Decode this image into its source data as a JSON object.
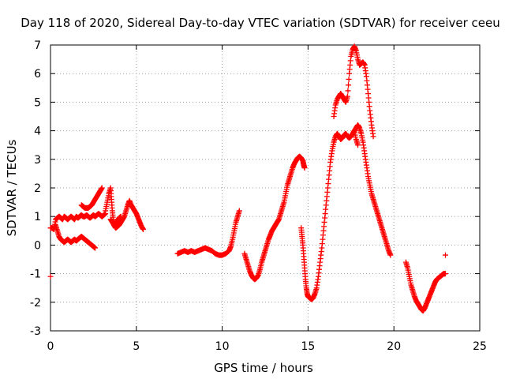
{
  "chart_data": {
    "type": "scatter",
    "title": "Day 118 of 2020, Sidereal Day-to-day VTEC variation (SDTVAR) for receiver ceeu",
    "xlabel": "GPS time / hours",
    "ylabel": "SDTVAR / TECUs",
    "xlim": [
      0,
      25
    ],
    "ylim": [
      -3,
      7
    ],
    "x_ticks": [
      "0",
      "5",
      "10",
      "15",
      "20",
      "25"
    ],
    "y_ticks": [
      "-3",
      "-2",
      "-1",
      "0",
      "1",
      "2",
      "3",
      "4",
      "5",
      "6",
      "7"
    ],
    "grid": true,
    "marker": "+",
    "marker_color": "#ff0000",
    "series": [
      {
        "segments": [
          [
            [
              0.0,
              -1.1
            ]
          ],
          [
            [
              0.0,
              0.6
            ],
            [
              0.1,
              0.6
            ],
            [
              0.2,
              0.55
            ],
            [
              0.3,
              0.9
            ],
            [
              0.4,
              0.95
            ],
            [
              0.5,
              1.0
            ],
            [
              0.6,
              0.95
            ],
            [
              0.7,
              0.9
            ],
            [
              0.8,
              1.0
            ],
            [
              0.9,
              0.95
            ],
            [
              1.0,
              0.9
            ],
            [
              1.1,
              0.95
            ],
            [
              1.2,
              1.0
            ],
            [
              1.3,
              0.95
            ],
            [
              1.4,
              0.9
            ],
            [
              1.5,
              1.0
            ],
            [
              1.6,
              0.95
            ],
            [
              1.7,
              1.0
            ],
            [
              1.8,
              1.05
            ],
            [
              1.9,
              1.0
            ],
            [
              2.0,
              1.0
            ],
            [
              2.1,
              1.05
            ],
            [
              2.2,
              1.0
            ],
            [
              2.3,
              0.95
            ],
            [
              2.4,
              1.0
            ],
            [
              2.5,
              1.05
            ],
            [
              2.6,
              1.0
            ],
            [
              2.7,
              1.05
            ],
            [
              2.8,
              1.1
            ],
            [
              2.9,
              1.05
            ],
            [
              3.0,
              1.0
            ],
            [
              3.1,
              1.05
            ],
            [
              3.2,
              1.1
            ]
          ],
          [
            [
              0.3,
              0.7
            ],
            [
              0.4,
              0.5
            ],
            [
              0.5,
              0.3
            ],
            [
              0.6,
              0.2
            ],
            [
              0.7,
              0.15
            ],
            [
              0.8,
              0.1
            ],
            [
              0.9,
              0.15
            ],
            [
              1.0,
              0.2
            ],
            [
              1.1,
              0.15
            ],
            [
              1.2,
              0.1
            ],
            [
              1.3,
              0.15
            ],
            [
              1.4,
              0.2
            ],
            [
              1.5,
              0.15
            ],
            [
              1.6,
              0.2
            ],
            [
              1.7,
              0.25
            ],
            [
              1.8,
              0.3
            ],
            [
              1.9,
              0.25
            ],
            [
              2.0,
              0.2
            ],
            [
              2.1,
              0.15
            ],
            [
              2.2,
              0.1
            ],
            [
              2.3,
              0.05
            ],
            [
              2.4,
              0.0
            ],
            [
              2.5,
              -0.05
            ],
            [
              2.6,
              -0.1
            ]
          ],
          [
            [
              1.8,
              1.4
            ],
            [
              1.9,
              1.35
            ],
            [
              2.0,
              1.3
            ],
            [
              2.1,
              1.3
            ],
            [
              2.2,
              1.3
            ],
            [
              2.3,
              1.35
            ],
            [
              2.4,
              1.4
            ],
            [
              2.5,
              1.5
            ],
            [
              2.6,
              1.6
            ],
            [
              2.7,
              1.7
            ],
            [
              2.8,
              1.8
            ],
            [
              2.9,
              1.9
            ],
            [
              3.0,
              2.0
            ]
          ],
          [
            [
              3.2,
              1.2
            ],
            [
              3.3,
              1.5
            ],
            [
              3.4,
              1.8
            ],
            [
              3.5,
              2.0
            ],
            [
              3.55,
              1.6
            ],
            [
              3.6,
              1.2
            ],
            [
              3.65,
              0.9
            ],
            [
              3.7,
              0.7
            ],
            [
              3.75,
              0.65
            ],
            [
              3.8,
              0.6
            ],
            [
              3.9,
              0.65
            ],
            [
              4.0,
              0.7
            ],
            [
              4.1,
              0.8
            ],
            [
              4.2,
              0.9
            ],
            [
              4.3,
              1.0
            ],
            [
              4.4,
              1.2
            ],
            [
              4.5,
              1.4
            ],
            [
              4.6,
              1.55
            ],
            [
              4.7,
              1.4
            ],
            [
              4.8,
              1.3
            ],
            [
              4.9,
              1.2
            ],
            [
              5.0,
              1.1
            ],
            [
              5.1,
              0.95
            ],
            [
              5.2,
              0.8
            ],
            [
              5.3,
              0.65
            ],
            [
              5.4,
              0.55
            ]
          ],
          [
            [
              3.5,
              0.9
            ],
            [
              3.6,
              0.8
            ],
            [
              3.7,
              0.7
            ],
            [
              3.8,
              0.75
            ],
            [
              3.9,
              0.85
            ],
            [
              4.0,
              0.95
            ],
            [
              4.1,
              1.0
            ]
          ],
          [
            [
              7.4,
              -0.3
            ],
            [
              7.6,
              -0.25
            ],
            [
              7.8,
              -0.2
            ],
            [
              8.0,
              -0.25
            ],
            [
              8.2,
              -0.2
            ],
            [
              8.4,
              -0.25
            ],
            [
              8.6,
              -0.2
            ],
            [
              8.8,
              -0.15
            ],
            [
              9.0,
              -0.1
            ],
            [
              9.2,
              -0.15
            ],
            [
              9.4,
              -0.2
            ],
            [
              9.6,
              -0.3
            ],
            [
              9.8,
              -0.35
            ],
            [
              10.0,
              -0.35
            ],
            [
              10.2,
              -0.3
            ],
            [
              10.4,
              -0.2
            ],
            [
              10.5,
              -0.05
            ],
            [
              10.6,
              0.2
            ],
            [
              10.7,
              0.5
            ],
            [
              10.8,
              0.8
            ],
            [
              10.9,
              1.0
            ],
            [
              11.0,
              1.2
            ]
          ],
          [
            [
              11.3,
              -0.3
            ],
            [
              11.4,
              -0.5
            ],
            [
              11.5,
              -0.7
            ],
            [
              11.6,
              -0.9
            ],
            [
              11.7,
              -1.05
            ],
            [
              11.8,
              -1.15
            ],
            [
              11.9,
              -1.2
            ],
            [
              12.0,
              -1.15
            ],
            [
              12.1,
              -1.05
            ],
            [
              12.2,
              -0.85
            ],
            [
              12.3,
              -0.6
            ],
            [
              12.4,
              -0.4
            ],
            [
              12.5,
              -0.2
            ],
            [
              12.6,
              0.0
            ],
            [
              12.7,
              0.2
            ],
            [
              12.8,
              0.35
            ],
            [
              12.9,
              0.5
            ],
            [
              13.0,
              0.6
            ],
            [
              13.1,
              0.7
            ],
            [
              13.2,
              0.8
            ],
            [
              13.3,
              0.9
            ],
            [
              13.4,
              1.1
            ],
            [
              13.5,
              1.3
            ],
            [
              13.6,
              1.5
            ],
            [
              13.7,
              1.8
            ],
            [
              13.8,
              2.1
            ],
            [
              13.9,
              2.3
            ],
            [
              14.0,
              2.5
            ],
            [
              14.1,
              2.7
            ],
            [
              14.2,
              2.85
            ],
            [
              14.3,
              2.95
            ],
            [
              14.4,
              3.05
            ],
            [
              14.5,
              3.1
            ],
            [
              14.6,
              3.05
            ],
            [
              14.7,
              2.95
            ],
            [
              14.75,
              2.8
            ],
            [
              14.8,
              2.7
            ]
          ],
          [
            [
              14.6,
              0.6
            ],
            [
              14.65,
              0.3
            ],
            [
              14.7,
              0.0
            ],
            [
              14.75,
              -0.4
            ],
            [
              14.8,
              -0.8
            ],
            [
              14.85,
              -1.2
            ],
            [
              14.9,
              -1.5
            ],
            [
              14.95,
              -1.7
            ],
            [
              15.0,
              -1.8
            ],
            [
              15.1,
              -1.85
            ],
            [
              15.2,
              -1.9
            ],
            [
              15.3,
              -1.85
            ],
            [
              15.4,
              -1.7
            ],
            [
              15.5,
              -1.5
            ],
            [
              15.6,
              -1.1
            ],
            [
              15.7,
              -0.6
            ],
            [
              15.8,
              -0.1
            ],
            [
              15.9,
              0.5
            ],
            [
              16.0,
              1.1
            ],
            [
              16.1,
              1.7
            ],
            [
              16.2,
              2.3
            ],
            [
              16.3,
              2.9
            ],
            [
              16.4,
              3.3
            ],
            [
              16.5,
              3.6
            ],
            [
              16.6,
              3.8
            ],
            [
              16.7,
              3.9
            ],
            [
              16.8,
              3.8
            ],
            [
              16.9,
              3.7
            ],
            [
              17.0,
              3.75
            ],
            [
              17.1,
              3.85
            ],
            [
              17.2,
              3.9
            ],
            [
              17.3,
              3.8
            ],
            [
              17.4,
              3.75
            ],
            [
              17.5,
              3.8
            ],
            [
              17.6,
              3.9
            ],
            [
              17.7,
              4.0
            ],
            [
              17.8,
              4.1
            ],
            [
              17.9,
              4.2
            ],
            [
              18.0,
              4.1
            ],
            [
              18.1,
              3.9
            ],
            [
              18.2,
              3.6
            ],
            [
              18.3,
              3.2
            ],
            [
              18.4,
              2.8
            ],
            [
              18.5,
              2.4
            ],
            [
              18.6,
              2.1
            ],
            [
              18.7,
              1.8
            ],
            [
              18.8,
              1.6
            ],
            [
              18.9,
              1.4
            ],
            [
              19.0,
              1.2
            ],
            [
              19.1,
              1.0
            ],
            [
              19.2,
              0.8
            ],
            [
              19.3,
              0.6
            ],
            [
              19.4,
              0.4
            ],
            [
              19.5,
              0.2
            ],
            [
              19.6,
              0.0
            ],
            [
              19.7,
              -0.2
            ],
            [
              19.8,
              -0.35
            ]
          ],
          [
            [
              16.5,
              4.5
            ],
            [
              16.6,
              4.9
            ],
            [
              16.7,
              5.1
            ],
            [
              16.8,
              5.2
            ],
            [
              16.9,
              5.3
            ],
            [
              17.0,
              5.2
            ],
            [
              17.1,
              5.1
            ],
            [
              17.2,
              5.0
            ],
            [
              17.3,
              5.2
            ],
            [
              17.4,
              6.0
            ],
            [
              17.5,
              6.6
            ],
            [
              17.6,
              6.85
            ],
            [
              17.7,
              6.95
            ],
            [
              17.8,
              6.8
            ],
            [
              17.9,
              6.5
            ],
            [
              18.0,
              6.3
            ],
            [
              18.1,
              6.35
            ],
            [
              18.2,
              6.4
            ],
            [
              18.3,
              6.3
            ],
            [
              18.4,
              5.9
            ],
            [
              18.5,
              5.3
            ],
            [
              18.6,
              4.7
            ],
            [
              18.7,
              4.2
            ],
            [
              18.8,
              3.8
            ]
          ],
          [
            [
              17.7,
              4.0
            ],
            [
              17.8,
              3.7
            ],
            [
              17.9,
              3.5
            ]
          ],
          [
            [
              20.7,
              -0.6
            ],
            [
              20.8,
              -0.8
            ],
            [
              20.9,
              -1.1
            ],
            [
              21.0,
              -1.4
            ],
            [
              21.1,
              -1.6
            ],
            [
              21.2,
              -1.8
            ],
            [
              21.3,
              -1.95
            ],
            [
              21.4,
              -2.05
            ],
            [
              21.5,
              -2.15
            ],
            [
              21.6,
              -2.25
            ],
            [
              21.7,
              -2.3
            ],
            [
              21.8,
              -2.2
            ],
            [
              21.9,
              -2.05
            ],
            [
              22.0,
              -1.9
            ],
            [
              22.1,
              -1.75
            ],
            [
              22.2,
              -1.6
            ],
            [
              22.3,
              -1.45
            ],
            [
              22.4,
              -1.3
            ],
            [
              22.5,
              -1.2
            ],
            [
              22.6,
              -1.15
            ],
            [
              22.7,
              -1.1
            ],
            [
              22.8,
              -1.05
            ],
            [
              22.9,
              -1.0
            ],
            [
              23.0,
              -1.0
            ]
          ],
          [
            [
              23.0,
              -0.35
            ]
          ]
        ]
      }
    ]
  }
}
